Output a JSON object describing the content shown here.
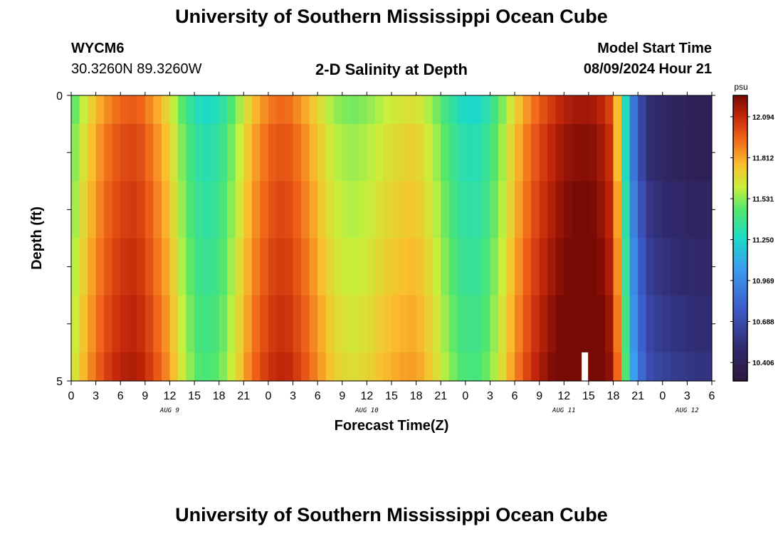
{
  "header": {
    "title": "University of Southern Mississippi Ocean Cube",
    "station_id": "WYCM6",
    "coords": "30.3260N  89.3260W",
    "subtitle": "2-D Salinity at Depth",
    "model_label": "Model Start Time",
    "model_time": "08/09/2024 Hour 21"
  },
  "footer": {
    "title": "University of Southern Mississippi Ocean Cube"
  },
  "chart_data": {
    "type": "heatmap",
    "title": "2-D Salinity at Depth",
    "xlabel": "Forecast Time(Z)",
    "ylabel": "Depth (ft)",
    "xlim_hours": [
      0,
      78
    ],
    "ylim": [
      0,
      5
    ],
    "x_tick_labels": [
      "0",
      "3",
      "6",
      "9",
      "12",
      "15",
      "18",
      "21",
      "0",
      "3",
      "6",
      "9",
      "12",
      "15",
      "18",
      "21",
      "0",
      "3",
      "6",
      "9",
      "12",
      "15",
      "18",
      "21",
      "0",
      "3",
      "6"
    ],
    "y_tick_labels": [
      "0",
      "5"
    ],
    "date_labels": [
      {
        "label": "AUG 9",
        "hour": 12
      },
      {
        "label": "AUG 10",
        "hour": 36
      },
      {
        "label": "AUG 11",
        "hour": 60
      },
      {
        "label": "AUG 12",
        "hour": 75
      }
    ],
    "colorbar": {
      "unit": "psu",
      "min": 10.28,
      "max": 12.24,
      "tick_labels": [
        "12.094",
        "11.812",
        "11.531",
        "11.250",
        "10.969",
        "10.688",
        "10.406"
      ]
    },
    "time_profile_psu": [
      {
        "hour": 0,
        "value": 11.48
      },
      {
        "hour": 2,
        "value": 11.72
      },
      {
        "hour": 4,
        "value": 11.9
      },
      {
        "hour": 6,
        "value": 12.0
      },
      {
        "hour": 8,
        "value": 12.03
      },
      {
        "hour": 10,
        "value": 11.9
      },
      {
        "hour": 12,
        "value": 11.72
      },
      {
        "hour": 14,
        "value": 11.45
      },
      {
        "hour": 16,
        "value": 11.3
      },
      {
        "hour": 18,
        "value": 11.35
      },
      {
        "hour": 20,
        "value": 11.55
      },
      {
        "hour": 22,
        "value": 11.8
      },
      {
        "hour": 24,
        "value": 11.95
      },
      {
        "hour": 26,
        "value": 12.0
      },
      {
        "hour": 28,
        "value": 11.9
      },
      {
        "hour": 30,
        "value": 11.75
      },
      {
        "hour": 32,
        "value": 11.6
      },
      {
        "hour": 34,
        "value": 11.55
      },
      {
        "hour": 36,
        "value": 11.58
      },
      {
        "hour": 38,
        "value": 11.65
      },
      {
        "hour": 40,
        "value": 11.7
      },
      {
        "hour": 42,
        "value": 11.72
      },
      {
        "hour": 44,
        "value": 11.6
      },
      {
        "hour": 46,
        "value": 11.42
      },
      {
        "hour": 48,
        "value": 11.3
      },
      {
        "hour": 50,
        "value": 11.32
      },
      {
        "hour": 52,
        "value": 11.5
      },
      {
        "hour": 54,
        "value": 11.75
      },
      {
        "hour": 56,
        "value": 11.95
      },
      {
        "hour": 58,
        "value": 12.08
      },
      {
        "hour": 60,
        "value": 12.18
      },
      {
        "hour": 62,
        "value": 12.22
      },
      {
        "hour": 64,
        "value": 12.2
      },
      {
        "hour": 66,
        "value": 12.05
      },
      {
        "hour": 67,
        "value": 11.6
      },
      {
        "hour": 68,
        "value": 11.05
      },
      {
        "hour": 70,
        "value": 10.6
      },
      {
        "hour": 72,
        "value": 10.52
      },
      {
        "hour": 74,
        "value": 10.48
      },
      {
        "hour": 76,
        "value": 10.45
      },
      {
        "hour": 78,
        "value": 10.45
      }
    ],
    "depth_offsets_psu": [
      {
        "depth_range": [
          0.0,
          0.5
        ],
        "top_offset": -0.05,
        "bottom_offset": -0.05
      },
      {
        "depth_range": [
          0.5,
          1.5
        ],
        "top_offset": 0.0,
        "bottom_offset": -0.05
      },
      {
        "depth_range": [
          1.5,
          2.5
        ],
        "top_offset": 0.03,
        "bottom_offset": 0.0
      },
      {
        "depth_range": [
          2.5,
          3.5
        ],
        "top_offset": 0.06,
        "bottom_offset": 0.04
      },
      {
        "depth_range": [
          3.5,
          4.5
        ],
        "top_offset": 0.09,
        "bottom_offset": 0.08
      },
      {
        "depth_range": [
          4.5,
          5.0
        ],
        "top_offset": 0.12,
        "bottom_offset": 0.12
      }
    ],
    "mask_cell": {
      "hour": 62.5,
      "depth_range": [
        4.5,
        5.0
      ],
      "color": "#ffffff"
    }
  }
}
